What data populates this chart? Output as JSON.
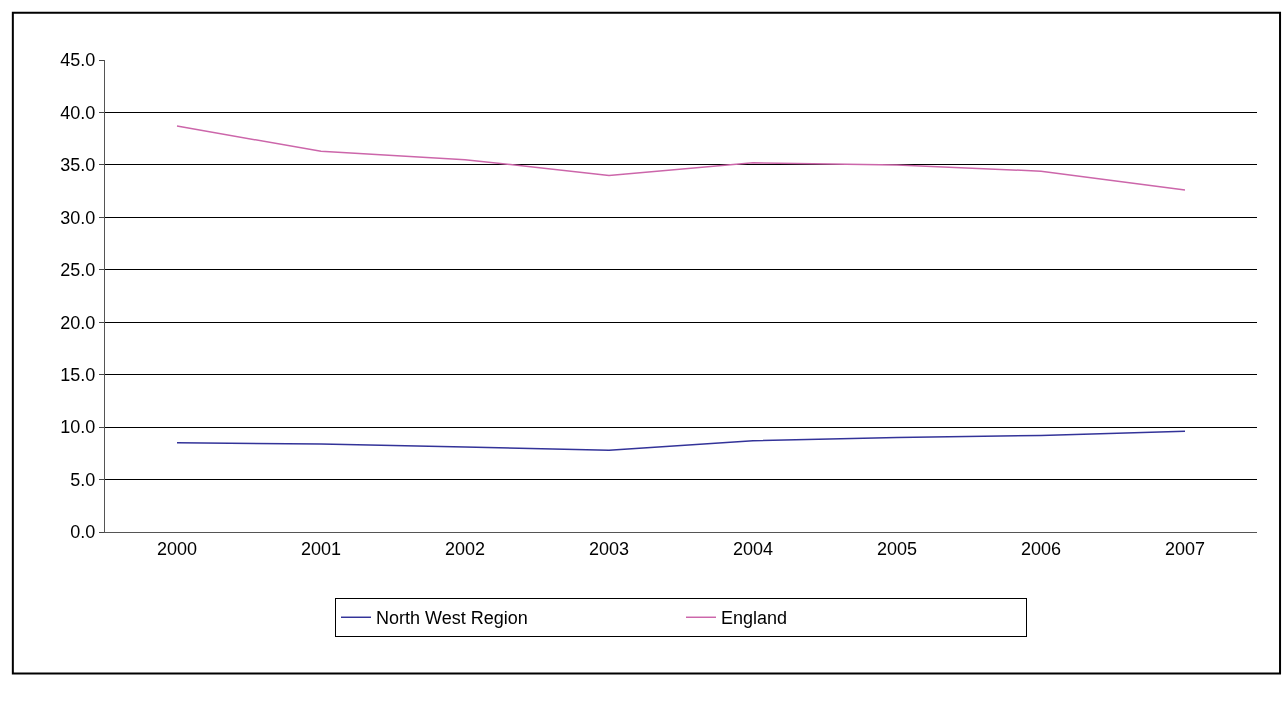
{
  "chart_data": {
    "type": "line",
    "categories": [
      "2000",
      "2001",
      "2002",
      "2003",
      "2004",
      "2005",
      "2006",
      "2007"
    ],
    "series": [
      {
        "name": "North West Region",
        "color": "#333399",
        "values": [
          8.5,
          8.4,
          8.1,
          7.8,
          8.7,
          9.0,
          9.2,
          9.6
        ]
      },
      {
        "name": "England",
        "color": "#cc66aa",
        "values": [
          38.7,
          36.3,
          35.5,
          34.0,
          35.2,
          35.0,
          34.4,
          32.6
        ]
      }
    ],
    "ylim": [
      0,
      45
    ],
    "yticks": [
      {
        "value": 0,
        "label": "0.0"
      },
      {
        "value": 5,
        "label": "5.0"
      },
      {
        "value": 10,
        "label": "10.0"
      },
      {
        "value": 15,
        "label": "15.0"
      },
      {
        "value": 20,
        "label": "20.0"
      },
      {
        "value": 25,
        "label": "25.0"
      },
      {
        "value": 30,
        "label": "30.0"
      },
      {
        "value": 35,
        "label": "35.0"
      },
      {
        "value": 40,
        "label": "40.0"
      },
      {
        "value": 45,
        "label": "45.0"
      }
    ],
    "grid": "y",
    "legend": "bottom",
    "marker": "none",
    "line_style": "solid"
  }
}
